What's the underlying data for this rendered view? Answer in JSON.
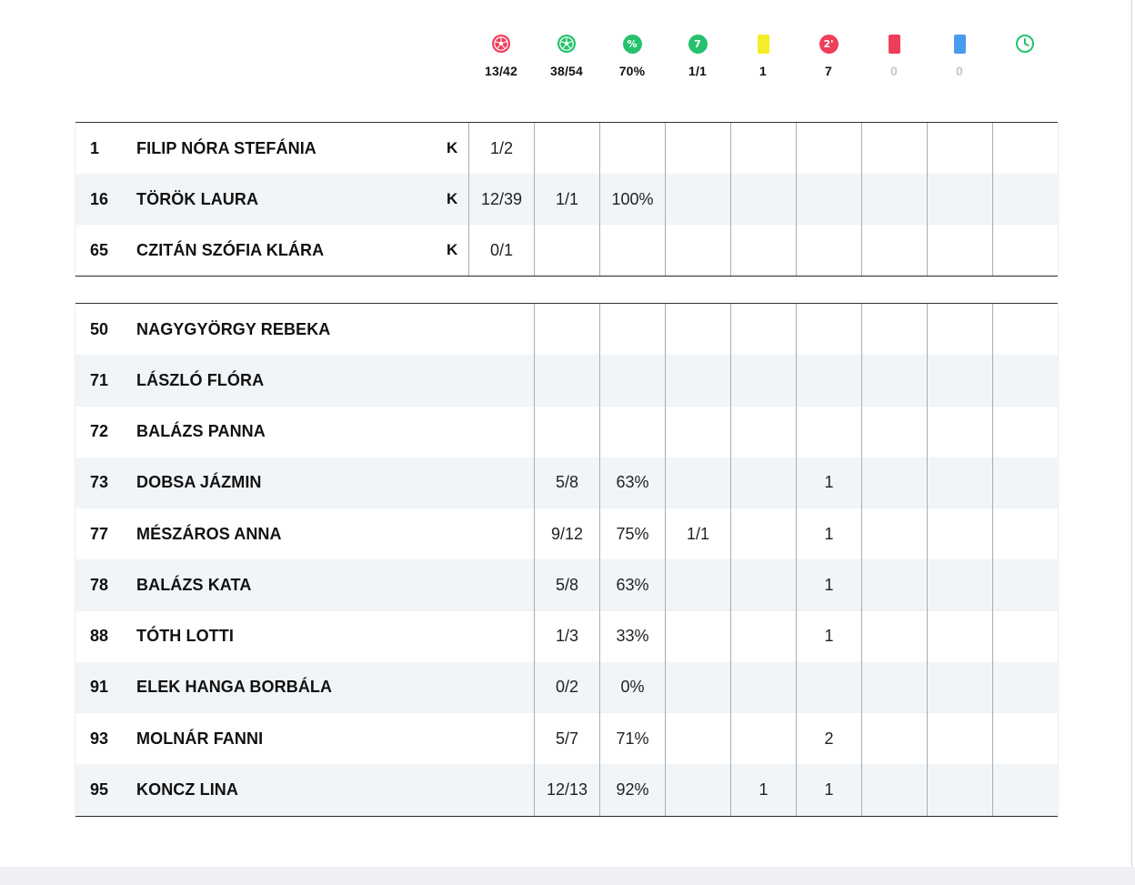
{
  "stat_columns": [
    {
      "icon": "ball-icon",
      "color": "#ef3e5a",
      "total": "13/42"
    },
    {
      "icon": "ball-icon",
      "color": "#25c26e",
      "total": "38/54"
    },
    {
      "icon": "percent-icon",
      "color": "#25c26e",
      "glyph": "%",
      "total": "70%"
    },
    {
      "icon": "seven-meter-icon",
      "color": "#25c26e",
      "glyph": "7",
      "total": "1/1"
    },
    {
      "icon": "yellow-card-icon",
      "color": "#f5ec2a",
      "total": "1"
    },
    {
      "icon": "two-minute-icon",
      "color": "#ef3e5a",
      "glyph": "2'",
      "total": "7"
    },
    {
      "icon": "red-card-icon",
      "color": "#ef3e5a",
      "total": "0"
    },
    {
      "icon": "blue-card-icon",
      "color": "#4a9af0",
      "total": "0"
    },
    {
      "icon": "clock-icon",
      "color": "#25c26e",
      "total": ""
    }
  ],
  "goalkeepers": [
    {
      "number": "1",
      "name": "FILIP NÓRA STEFÁNIA",
      "flag": "K",
      "cells": [
        "1/2",
        "",
        "",
        "",
        "",
        "",
        "",
        "",
        ""
      ]
    },
    {
      "number": "16",
      "name": "TÖRÖK LAURA",
      "flag": "K",
      "cells": [
        "12/39",
        "1/1",
        "100%",
        "",
        "",
        "",
        "",
        "",
        ""
      ]
    },
    {
      "number": "65",
      "name": "CZITÁN SZÓFIA KLÁRA",
      "flag": "K",
      "cells": [
        "0/1",
        "",
        "",
        "",
        "",
        "",
        "",
        "",
        ""
      ]
    }
  ],
  "field_players": [
    {
      "number": "50",
      "name": "NAGYGYÖRGY REBEKA",
      "cells": [
        "",
        "",
        "",
        "",
        "",
        "",
        "",
        ""
      ]
    },
    {
      "number": "71",
      "name": "LÁSZLÓ FLÓRA",
      "cells": [
        "",
        "",
        "",
        "",
        "",
        "",
        "",
        ""
      ]
    },
    {
      "number": "72",
      "name": "BALÁZS PANNA",
      "cells": [
        "",
        "",
        "",
        "",
        "",
        "",
        "",
        ""
      ]
    },
    {
      "number": "73",
      "name": "DOBSA JÁZMIN",
      "cells": [
        "5/8",
        "63%",
        "",
        "",
        "1",
        "",
        "",
        ""
      ]
    },
    {
      "number": "77",
      "name": "MÉSZÁROS ANNA",
      "cells": [
        "9/12",
        "75%",
        "1/1",
        "",
        "1",
        "",
        "",
        ""
      ]
    },
    {
      "number": "78",
      "name": "BALÁZS KATA",
      "cells": [
        "5/8",
        "63%",
        "",
        "",
        "1",
        "",
        "",
        ""
      ]
    },
    {
      "number": "88",
      "name": "TÓTH LOTTI",
      "cells": [
        "1/3",
        "33%",
        "",
        "",
        "1",
        "",
        "",
        ""
      ]
    },
    {
      "number": "91",
      "name": "ELEK HANGA BORBÁLA",
      "cells": [
        "0/2",
        "0%",
        "",
        "",
        "",
        "",
        "",
        ""
      ]
    },
    {
      "number": "93",
      "name": "MOLNÁR FANNI",
      "cells": [
        "5/7",
        "71%",
        "",
        "",
        "2",
        "",
        "",
        ""
      ]
    },
    {
      "number": "95",
      "name": "KONCZ LINA",
      "cells": [
        "12/13",
        "92%",
        "",
        "1",
        "1",
        "",
        "",
        ""
      ]
    }
  ]
}
